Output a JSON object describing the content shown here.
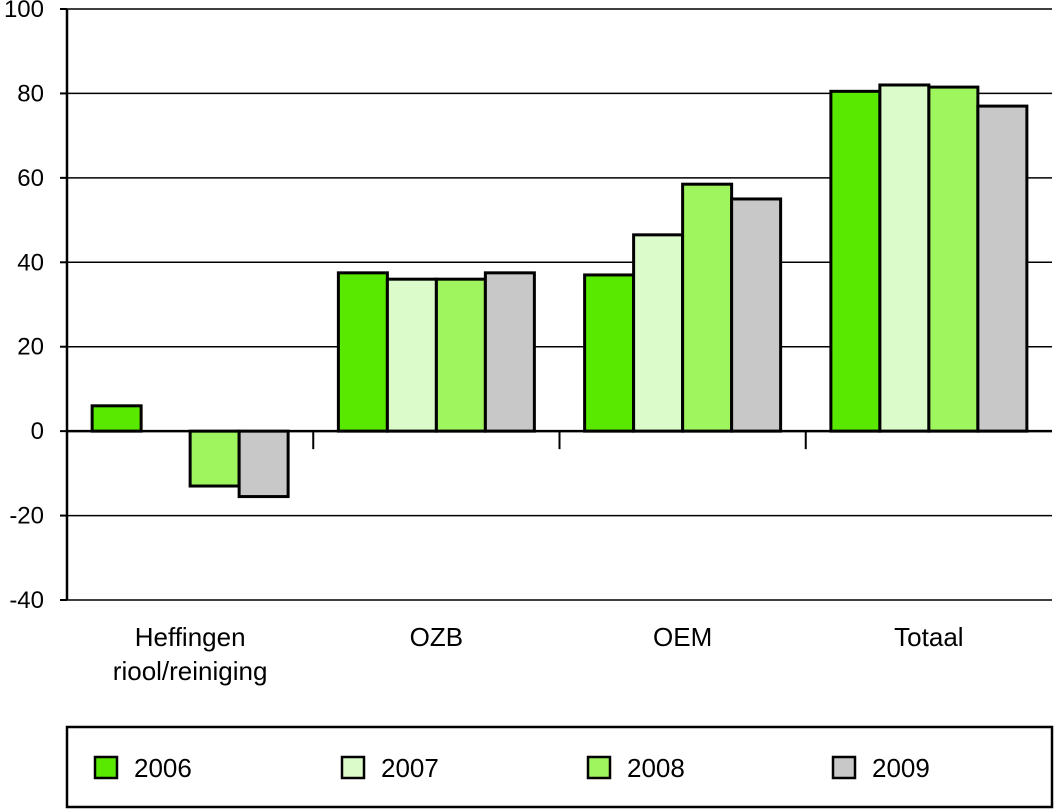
{
  "chart_data": {
    "type": "bar",
    "categories": [
      [
        "Heffingen",
        "riool/reiniging"
      ],
      [
        "OZB"
      ],
      [
        "OEM"
      ],
      [
        "Totaal"
      ]
    ],
    "series": [
      {
        "name": "2006",
        "color": "#59e800",
        "values": [
          6,
          37.5,
          37,
          80.5
        ]
      },
      {
        "name": "2007",
        "color": "#dcfbcb",
        "values": [
          0,
          36,
          46.5,
          82
        ]
      },
      {
        "name": "2008",
        "color": "#9ff55e",
        "values": [
          -13,
          36,
          58.5,
          81.5
        ]
      },
      {
        "name": "2009",
        "color": "#c8c8c8",
        "values": [
          -15.5,
          37.5,
          55,
          77
        ]
      }
    ],
    "ylim": [
      -40,
      100
    ],
    "yticks": [
      "-40",
      "-20",
      "0",
      "20",
      "40",
      "60",
      "80",
      "100"
    ],
    "grid": true,
    "legend": "bottom"
  }
}
